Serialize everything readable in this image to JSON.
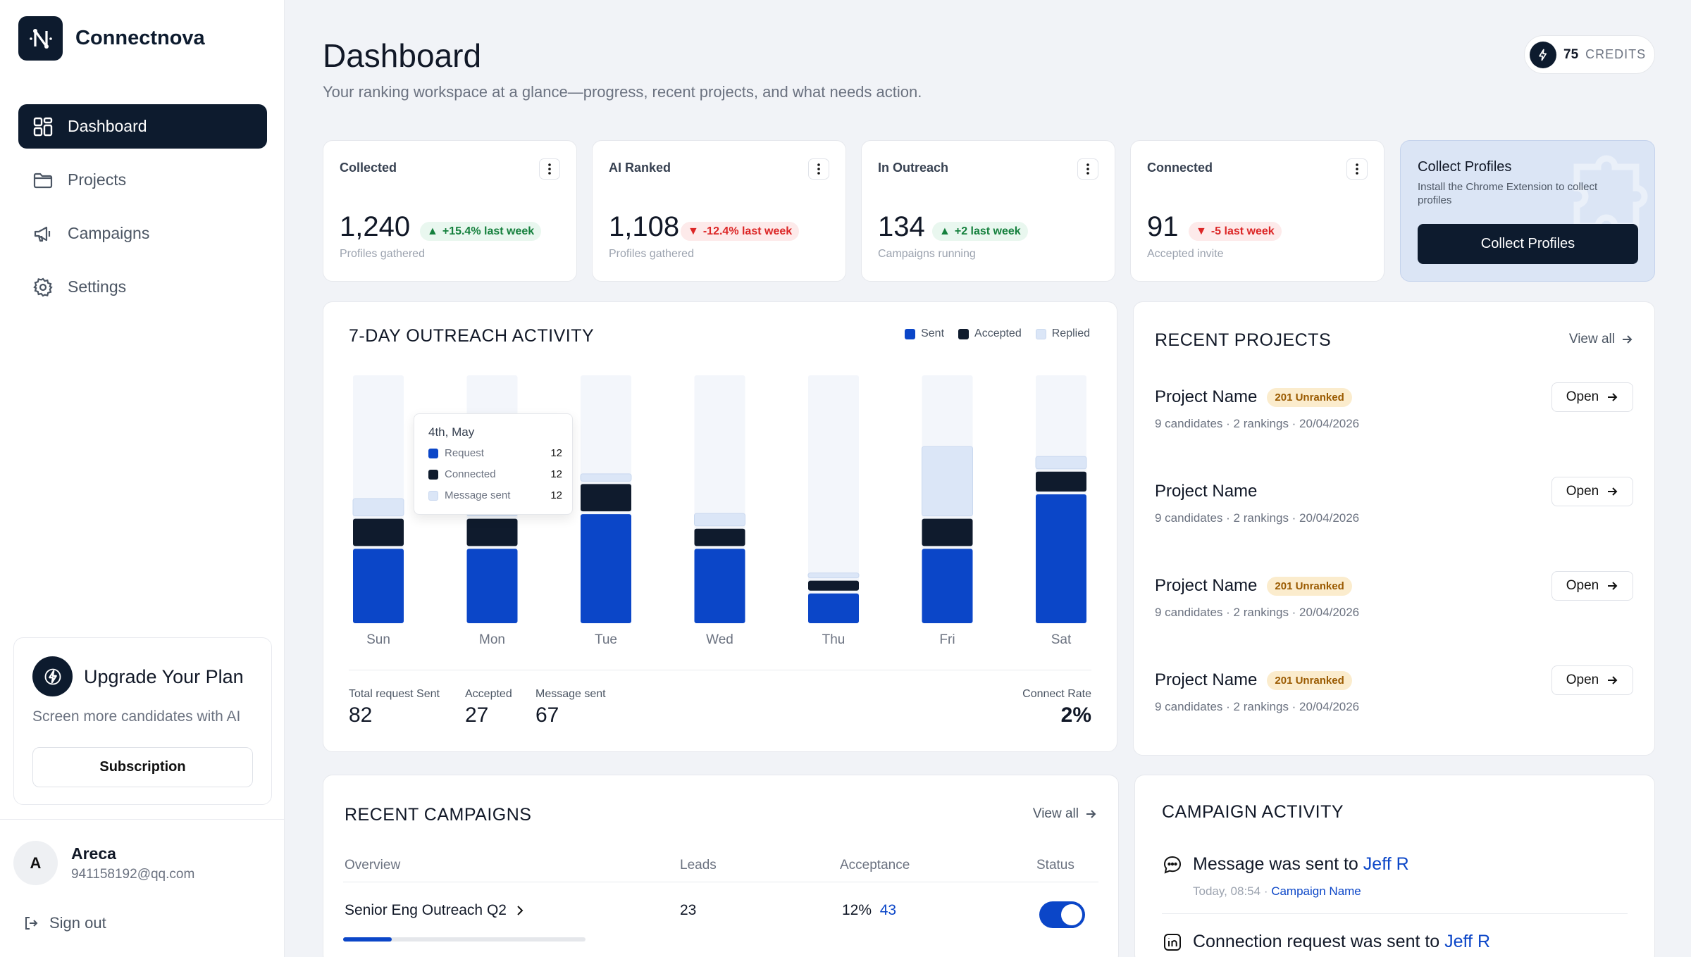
{
  "brand": {
    "name": "Connectnova"
  },
  "nav": [
    {
      "label": "Dashboard",
      "icon": "grid-icon",
      "active": true
    },
    {
      "label": "Projects",
      "icon": "folder-icon",
      "active": false
    },
    {
      "label": "Campaigns",
      "icon": "megaphone-icon",
      "active": false
    },
    {
      "label": "Settings",
      "icon": "gear-icon",
      "active": false
    }
  ],
  "upgrade": {
    "title": "Upgrade Your Plan",
    "subtitle": "Screen more candidates with AI",
    "button": "Subscription"
  },
  "user": {
    "initial": "A",
    "name": "Areca",
    "email": "941158192@qq.com"
  },
  "signout": "Sign out",
  "header": {
    "title": "Dashboard",
    "subtitle": "Your ranking workspace at a glance—progress, recent projects, and what needs action."
  },
  "credits": {
    "value": "75",
    "label": "CREDITS"
  },
  "stats": [
    {
      "label": "Collected",
      "value": "1,240",
      "delta": "+15.4% last week",
      "trend": "up",
      "sub": "Profiles gathered"
    },
    {
      "label": "AI Ranked",
      "value": "1,108",
      "delta": "-12.4% last week",
      "trend": "down",
      "sub": "Profiles gathered"
    },
    {
      "label": "In Outreach",
      "value": "134",
      "delta": "+2 last week",
      "trend": "up",
      "sub": "Campaigns running"
    },
    {
      "label": "Connected",
      "value": "91",
      "delta": "-5 last week",
      "trend": "down",
      "sub": "Accepted invite"
    }
  ],
  "promo": {
    "title": "Collect Profiles",
    "subtitle": "Install the Chrome Extension to collect profiles",
    "button": "Collect Profiles"
  },
  "outreach": {
    "title": "7-DAY OUTREACH ACTIVITY",
    "legend": [
      "Sent",
      "Accepted",
      "Replied"
    ],
    "tooltip": {
      "date": "4th, May",
      "rows": [
        {
          "label": "Request",
          "value": "12"
        },
        {
          "label": "Connected",
          "value": "12"
        },
        {
          "label": "Message sent",
          "value": "12"
        }
      ]
    },
    "summary": [
      {
        "label": "Total request Sent",
        "value": "82"
      },
      {
        "label": "Accepted",
        "value": "27"
      },
      {
        "label": "Message sent",
        "value": "67"
      },
      {
        "label": "Connect Rate",
        "value": "2%"
      }
    ]
  },
  "chart_data": {
    "type": "bar",
    "stacked": true,
    "categories": [
      "Sun",
      "Mon",
      "Tue",
      "Wed",
      "Thu",
      "Fri",
      "Sat"
    ],
    "series": [
      {
        "name": "Sent",
        "values": [
          30,
          30,
          44,
          30,
          12,
          30,
          52
        ]
      },
      {
        "name": "Accepted",
        "values": [
          11,
          11,
          11,
          7,
          4,
          11,
          8
        ]
      },
      {
        "name": "Replied",
        "values": [
          7,
          7,
          3,
          5,
          2,
          28,
          5
        ]
      }
    ],
    "ylim": [
      0,
      100
    ],
    "colors": {
      "Sent": "#0b46c8",
      "Accepted": "#0f1b2d",
      "Replied": "#dbe6f7",
      "track": "#f3f6fb"
    }
  },
  "recent_projects": {
    "title": "RECENT PROJECTS",
    "view_all": "View all",
    "items": [
      {
        "name": "Project  Name",
        "badge": "201 Unranked",
        "meta": "9 candidates · 2 rankings · 20/04/2026",
        "action": "Open"
      },
      {
        "name": "Project  Name",
        "badge": "",
        "meta": "9 candidates · 2 rankings · 20/04/2026",
        "action": "Open"
      },
      {
        "name": "Project  Name",
        "badge": "201 Unranked",
        "meta": "9 candidates · 2 rankings · 20/04/2026",
        "action": "Open"
      },
      {
        "name": "Project  Name",
        "badge": "201 Unranked",
        "meta": "9 candidates · 2 rankings · 20/04/2026",
        "action": "Open"
      }
    ]
  },
  "recent_campaigns": {
    "title": "RECENT CAMPAIGNS",
    "view_all": "View all",
    "columns": [
      "Overview",
      "Leads",
      "Acceptance",
      "Status"
    ],
    "rows": [
      {
        "name": "Senior Eng Outreach Q2",
        "leads": "23",
        "acceptance": "12%",
        "acceptance_count": "43",
        "status_on": true,
        "progress": 0.2
      }
    ]
  },
  "campaign_activity": {
    "title": "CAMPAIGN ACTIVITY",
    "items": [
      {
        "text": "Message was sent to ",
        "person": "Jeff R",
        "time": "Today, 08:54",
        "sep": " · ",
        "campaign": "Campaign Name",
        "icon": "chat-icon"
      },
      {
        "text": "Connection request was sent to ",
        "person": "Jeff R",
        "icon": "linkedin-icon"
      }
    ]
  }
}
